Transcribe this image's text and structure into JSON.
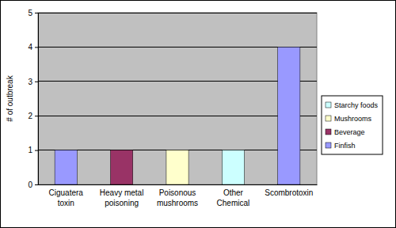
{
  "chart_data": {
    "type": "bar",
    "stacked": true,
    "y_label": "# of outbreak",
    "categories": [
      "Ciguatera toxin",
      "Heavy metal poisoning",
      "Poisonous mushrooms",
      "Other Chemical",
      "Scombrotoxin"
    ],
    "series": [
      {
        "name": "Starchy foods",
        "color": "#ccffff",
        "values": [
          0,
          0,
          0,
          1,
          0
        ]
      },
      {
        "name": "Mushrooms",
        "color": "#ffffcc",
        "values": [
          0,
          0,
          1,
          0,
          0
        ]
      },
      {
        "name": "Beverage",
        "color": "#993366",
        "values": [
          0,
          1,
          0,
          0,
          0
        ]
      },
      {
        "name": "Finfish",
        "color": "#9999ff",
        "values": [
          1,
          0,
          0,
          0,
          4
        ]
      }
    ],
    "ylim": [
      0,
      5
    ],
    "yticks": [
      0,
      1,
      2,
      3,
      4,
      5
    ],
    "grid": true,
    "legend": "right"
  }
}
